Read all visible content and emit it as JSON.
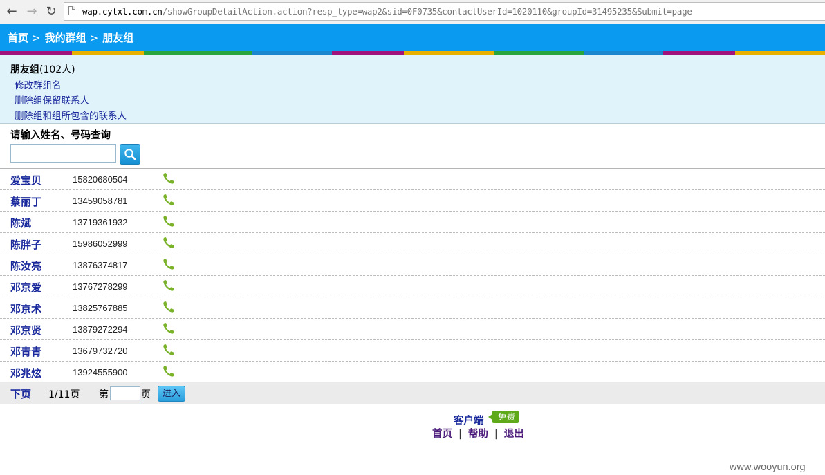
{
  "browser": {
    "url_host": "wap.cytxl.com.cn",
    "url_rest": "/showGroupDetailAction.action?resp_type=wap2&sid=0F0735&contactUserId=1020110&groupId=31495235&Submit=page"
  },
  "breadcrumb": {
    "home": "首页",
    "sep": ">",
    "groups": "我的群组",
    "current": "朋友组"
  },
  "stripe_colors": [
    "#a0127c",
    "#e8b100",
    "#2aa53c",
    "#1a86d0",
    "#a0127c",
    "#e8b100",
    "#2aa53c",
    "#1a86d0",
    "#a0127c",
    "#e8b100"
  ],
  "group": {
    "name": "朋友组",
    "count": "(102人)",
    "actions": [
      "修改群组名",
      "删除组保留联系人",
      "删除组和组所包含的联系人"
    ]
  },
  "search": {
    "label": "请输入姓名、号码查询"
  },
  "contacts": [
    {
      "name": "爱宝贝",
      "phone": "15820680504"
    },
    {
      "name": "蔡丽丁",
      "phone": "13459058781"
    },
    {
      "name": "陈斌",
      "phone": "13719361932"
    },
    {
      "name": "陈胖子",
      "phone": "15986052999"
    },
    {
      "name": "陈汝亮",
      "phone": "13876374817"
    },
    {
      "name": "邓京爱",
      "phone": "13767278299"
    },
    {
      "name": "邓京术",
      "phone": "13825767885"
    },
    {
      "name": "邓京贤",
      "phone": "13879272294"
    },
    {
      "name": "邓青青",
      "phone": "13679732720"
    },
    {
      "name": "邓兆炫",
      "phone": "13924555900"
    }
  ],
  "pager": {
    "next": "下页",
    "info": "1/11页",
    "di": "第",
    "ye": "页",
    "go": "进入"
  },
  "footer": {
    "client": "客户端",
    "free": "免费",
    "home": "首页",
    "help": "帮助",
    "logout": "退出",
    "bar": "|"
  },
  "watermark": "www.wooyun.org",
  "colors": {
    "topbar": "#0a9bf0",
    "link": "#1a2a9c",
    "phone_icon": "#7ab22a",
    "info_bg": "#e0f3fb"
  }
}
